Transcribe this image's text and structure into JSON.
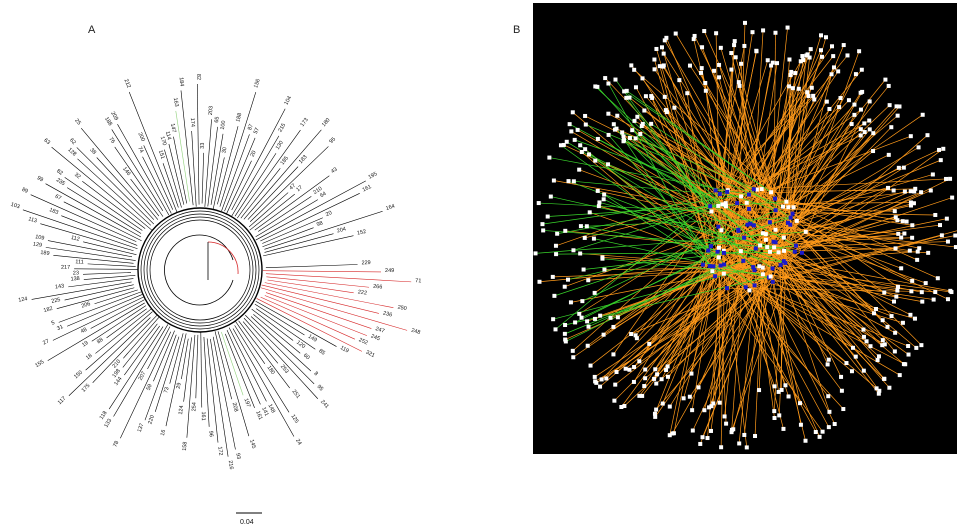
{
  "panels": {
    "a_label": "A",
    "b_label": "B"
  },
  "tree": {
    "scale_label": "0.04",
    "colors": {
      "branch": "#000000",
      "highlight_red": "#d62728",
      "highlight_green": "#8fd17a"
    },
    "leaf_labels": [
      "229",
      "249",
      "71",
      "266",
      "222",
      "250",
      "236",
      "248",
      "247",
      "245",
      "252",
      "321",
      "119",
      "149",
      "85",
      "120",
      "60",
      "8",
      "95",
      "241",
      "253",
      "251",
      "180",
      "125",
      "24",
      "148",
      "141",
      "161",
      "197",
      "145",
      "208",
      "93",
      "216",
      "172",
      "96",
      "161",
      "254",
      "158",
      "124",
      "29",
      "16",
      "73",
      "220",
      "137",
      "59",
      "78",
      "207",
      "133",
      "118",
      "144",
      "198",
      "210",
      "175",
      "117",
      "150",
      "18",
      "88",
      "19",
      "155",
      "48",
      "27",
      "31",
      "5",
      "206",
      "182",
      "225",
      "124",
      "143",
      "138",
      "23",
      "217",
      "111",
      "189",
      "129",
      "109",
      "112",
      "113",
      "103",
      "183",
      "89",
      "67",
      "99",
      "235",
      "82",
      "32",
      "63",
      "128",
      "62",
      "38",
      "25",
      "146",
      "76",
      "188",
      "209",
      "74",
      "200",
      "212",
      "151",
      "170",
      "114",
      "147",
      "163",
      "184",
      "174",
      "82",
      "33",
      "203",
      "65",
      "100",
      "30",
      "188",
      "156",
      "87",
      "57",
      "20",
      "104",
      "215",
      "130",
      "173",
      "185",
      "180",
      "183",
      "95",
      "47",
      "17",
      "43",
      "210",
      "64",
      "195",
      "161",
      "20",
      "98",
      "164",
      "204",
      "152"
    ],
    "highlighted_red": [
      "249",
      "71",
      "266",
      "222",
      "250",
      "236",
      "248",
      "247",
      "245",
      "252",
      "321"
    ],
    "highlighted_green": [
      "80",
      "157",
      "197",
      "163"
    ]
  },
  "network": {
    "colors": {
      "background": "#000000",
      "edge_orange": "#ff9a1a",
      "edge_green": "#39d62b",
      "node_white": "#ffffff",
      "node_blue": "#1a1acc"
    }
  }
}
